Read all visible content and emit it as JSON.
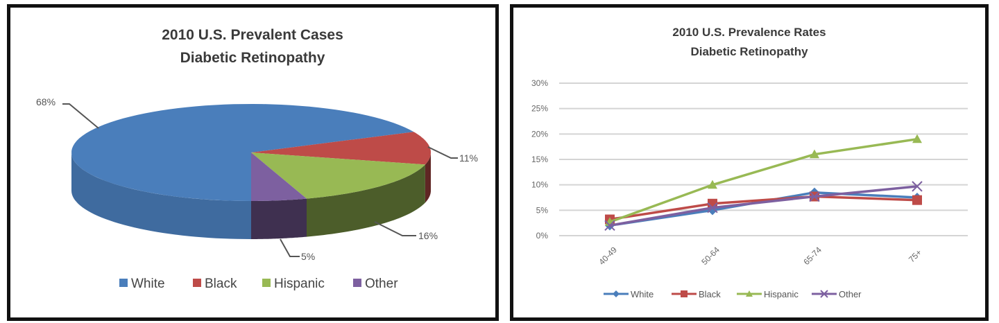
{
  "pie_panel": {
    "title_line1": "2010 U.S. Prevalent Cases",
    "title_line2": "Diabetic Retinopathy"
  },
  "line_panel": {
    "title_line1": "2010 U.S. Prevalence Rates",
    "title_line2": "Diabetic Retinopathy"
  },
  "chart_data": [
    {
      "type": "pie",
      "title": "2010 U.S. Prevalent Cases Diabetic Retinopathy",
      "style": "3d",
      "categories": [
        "White",
        "Black",
        "Hispanic",
        "Other"
      ],
      "values": [
        68,
        11,
        16,
        5
      ],
      "labels": [
        "68%",
        "11%",
        "16%",
        "5%"
      ],
      "colors": [
        "#4a7ebb",
        "#be4b48",
        "#98b954",
        "#7d60a0"
      ],
      "legend_position": "bottom"
    },
    {
      "type": "line",
      "title": "2010 U.S. Prevalence Rates Diabetic Retinopathy",
      "xlabel": "",
      "ylabel": "",
      "categories": [
        "40-49",
        "50-64",
        "65-74",
        "75+"
      ],
      "yticks": [
        "0%",
        "5%",
        "10%",
        "15%",
        "20%",
        "25%",
        "30%"
      ],
      "ylim": [
        0,
        30
      ],
      "grid": true,
      "legend_position": "bottom",
      "series": [
        {
          "name": "White",
          "color": "#4a7ebb",
          "marker": "diamond",
          "values": [
            2.0,
            5.0,
            8.5,
            7.5
          ]
        },
        {
          "name": "Black",
          "color": "#be4b48",
          "marker": "square",
          "values": [
            3.2,
            6.3,
            7.7,
            7.0
          ]
        },
        {
          "name": "Hispanic",
          "color": "#98b954",
          "marker": "triangle",
          "values": [
            2.7,
            10.0,
            16.0,
            19.0
          ]
        },
        {
          "name": "Other",
          "color": "#7d60a0",
          "marker": "x",
          "values": [
            2.0,
            5.5,
            7.7,
            9.7
          ]
        }
      ]
    }
  ]
}
